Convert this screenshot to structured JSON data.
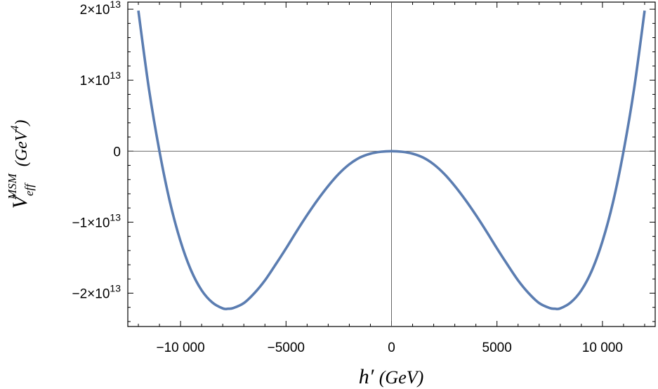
{
  "chart_data": {
    "type": "line",
    "xlabel": {
      "main": "h′",
      "unit": "(GeV)"
    },
    "ylabel": {
      "main": "V",
      "sub": "eff",
      "sup": "MSM",
      "unit_open": "(GeV",
      "unit_sup": "4",
      "unit_close": ")"
    },
    "xlim": [
      -12500,
      12500
    ],
    "ylim": [
      -24700000000000.0,
      21000000000000.0
    ],
    "x_ticks": [
      {
        "value": -10000,
        "label": "−10 000"
      },
      {
        "value": -5000,
        "label": "−5000"
      },
      {
        "value": 0,
        "label": "0"
      },
      {
        "value": 5000,
        "label": "5000"
      },
      {
        "value": 10000,
        "label": "10 000"
      }
    ],
    "y_ticks": [
      {
        "value": 20000000000000.0,
        "mantissa": "2",
        "exponent": "13"
      },
      {
        "value": 10000000000000.0,
        "mantissa": "1",
        "exponent": "13"
      },
      {
        "value": 0,
        "mantissa": "0",
        "exponent": ""
      },
      {
        "value": -10000000000000.0,
        "mantissa": "−1",
        "exponent": "13"
      },
      {
        "value": -20000000000000.0,
        "mantissa": "−2",
        "exponent": "13"
      }
    ],
    "grid": false,
    "axes_through_origin": true,
    "series": [
      {
        "color": "#5B7DB1",
        "x": [
          -12000,
          -11500,
          -11000,
          -10500,
          -10000,
          -9500,
          -9000,
          -8500,
          -8000,
          -7750,
          -7500,
          -7000,
          -6500,
          -6000,
          -5500,
          -5000,
          -4500,
          -4000,
          -3500,
          -3000,
          -2500,
          -2000,
          -1500,
          -1000,
          -500,
          0,
          500,
          1000,
          1500,
          2000,
          2500,
          3000,
          3500,
          4000,
          4500,
          5000,
          5500,
          6000,
          6500,
          7000,
          7500,
          7750,
          8000,
          8500,
          9000,
          9500,
          10000,
          10500,
          11000,
          11500,
          12000
        ],
        "y": [
          19800000000000.0,
          8800000000000.0,
          0.0,
          -7200000000000.0,
          -12700000000000.0,
          -16800000000000.0,
          -19600000000000.0,
          -21300000000000.0,
          -22150000000000.0,
          -22200000000000.0,
          -22100000000000.0,
          -21400000000000.0,
          -20000000000000.0,
          -18200000000000.0,
          -16000000000000.0,
          -13700000000000.0,
          -11300000000000.0,
          -9000000000000.0,
          -6850000000000.0,
          -4900000000000.0,
          -3200000000000.0,
          -1850000000000.0,
          -900000000000.0,
          -350000000000.0,
          -80000000000.0,
          0.0,
          -80000000000.0,
          -350000000000.0,
          -900000000000.0,
          -1850000000000.0,
          -3200000000000.0,
          -4900000000000.0,
          -6850000000000.0,
          -9000000000000.0,
          -11300000000000.0,
          -13700000000000.0,
          -16000000000000.0,
          -18200000000000.0,
          -20000000000000.0,
          -21400000000000.0,
          -22100000000000.0,
          -22200000000000.0,
          -22150000000000.0,
          -21300000000000.0,
          -19600000000000.0,
          -16800000000000.0,
          -12700000000000.0,
          -7200000000000.0,
          0.0,
          8800000000000.0,
          19800000000000.0
        ]
      }
    ]
  }
}
